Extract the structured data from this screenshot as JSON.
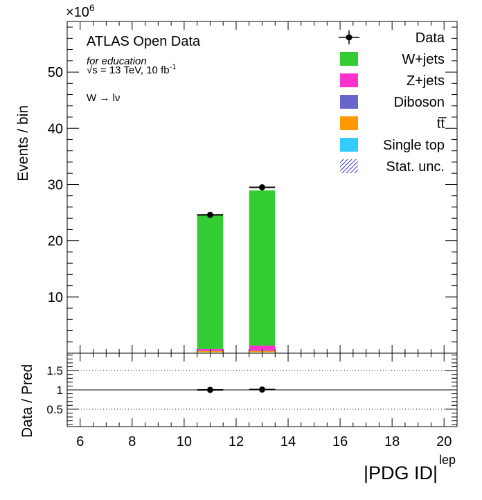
{
  "chart_data": {
    "type": "bar",
    "stacked": true,
    "experiment": "ATLAS Open Data",
    "tagline": "for education",
    "energy_label": "√s = 13 TeV, 10 fb",
    "energy_sup": "-1",
    "channel": "W → lν",
    "xlabel": "|PDG ID|",
    "xlabel_sup": "lep",
    "ylabel": "Events / bin",
    "y_exponent_label": "×10",
    "y_exponent_sup": "6",
    "ratio_ylabel": "Data / Pred",
    "xlim": [
      5.5,
      20.5
    ],
    "ylim": [
      0,
      59
    ],
    "ratio_ylim": [
      0.05,
      1.95
    ],
    "x_major_ticks": [
      6,
      8,
      10,
      12,
      14,
      16,
      18,
      20
    ],
    "y_major_ticks": [
      10,
      20,
      30,
      40,
      50
    ],
    "ratio_major_ticks": [
      0.5,
      1,
      1.5
    ],
    "ratio_tick_labels": [
      "0.5",
      "1",
      "1.5"
    ],
    "bins": [
      [
        10.5,
        11.5
      ],
      [
        12.5,
        13.5
      ]
    ],
    "series": [
      {
        "name": "Single top",
        "color": "#33ccff",
        "values": [
          0.1,
          0.1
        ]
      },
      {
        "name": "t̅t",
        "legend_label": "tt",
        "color": "#ff9900",
        "values": [
          0.3,
          0.3
        ]
      },
      {
        "name": "Diboson",
        "color": "#6666cc",
        "values": [
          0.05,
          0.05
        ]
      },
      {
        "name": "Z+jets",
        "color": "#ff33cc",
        "values": [
          0.3,
          0.9
        ]
      },
      {
        "name": "W+jets",
        "color": "#33cc33",
        "values": [
          23.9,
          27.6
        ]
      }
    ],
    "data": {
      "name": "Data",
      "x": [
        11,
        13
      ],
      "y": [
        24.6,
        29.5
      ],
      "x_err": [
        0.5,
        0.5
      ]
    },
    "ratio": {
      "x": [
        11,
        13
      ],
      "y": [
        1.0,
        1.01
      ],
      "x_err": [
        0.5,
        0.5
      ]
    },
    "legend": [
      "Data",
      "W+jets",
      "Z+jets",
      "Diboson",
      "tt",
      "Single top",
      "Stat. unc."
    ],
    "legend_placement": "top-right",
    "ratio_dotted_lines": [
      0.5,
      1.5
    ],
    "grid": false
  }
}
